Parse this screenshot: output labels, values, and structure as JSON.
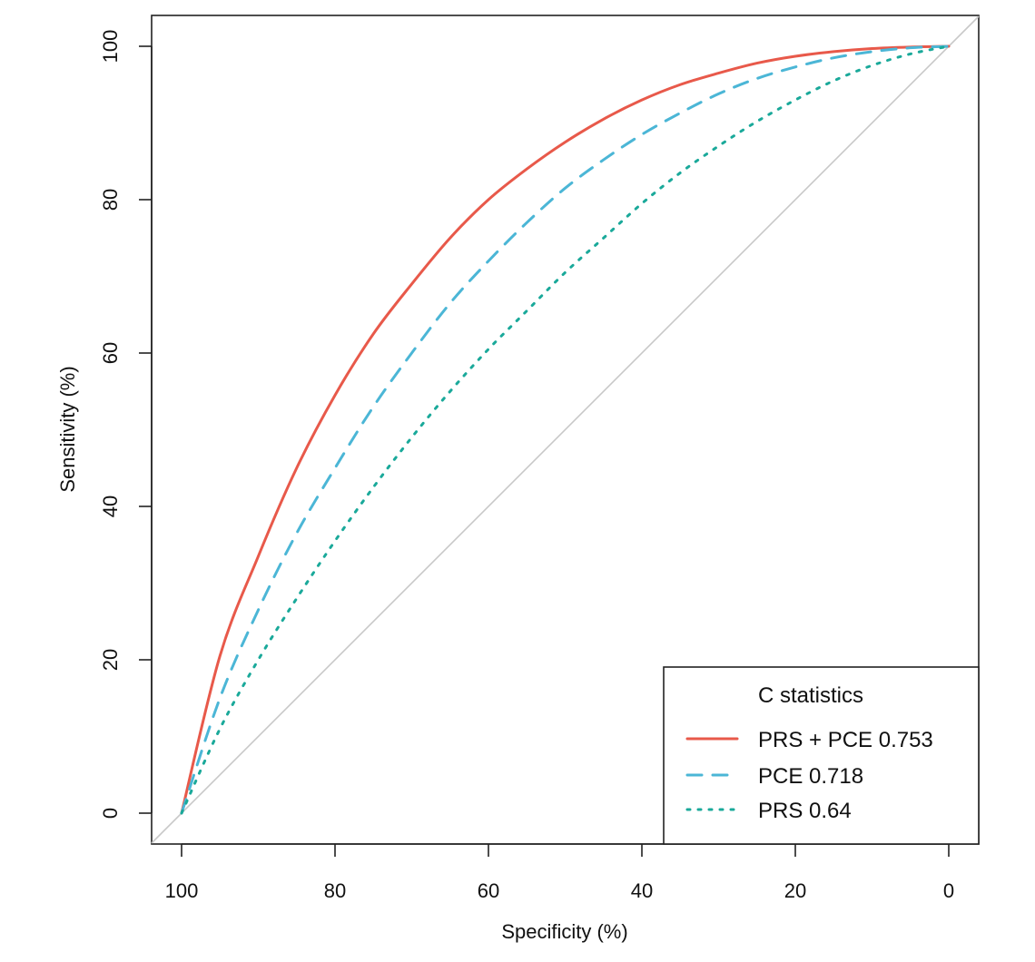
{
  "chart_data": {
    "type": "line",
    "xlabel": "Specificity (%)",
    "ylabel": "Sensitivity (%)",
    "xlim": [
      100,
      0
    ],
    "ylim": [
      0,
      100
    ],
    "x_reversed": true,
    "xticks": [
      100,
      80,
      60,
      40,
      20,
      0
    ],
    "yticks": [
      0,
      20,
      40,
      60,
      80,
      100
    ],
    "grid": false,
    "legend": {
      "title": "C statistics",
      "placement": "bottom-right"
    },
    "reference_line": {
      "from": [
        100,
        0
      ],
      "to": [
        0,
        100
      ],
      "color": "#c8c8c8"
    },
    "series": [
      {
        "name": "PRS + PCE 0.753",
        "color": "#e8594a",
        "dash": "solid",
        "x": [
          100,
          95,
          90,
          85,
          80,
          75,
          70,
          65,
          60,
          55,
          50,
          45,
          40,
          35,
          30,
          25,
          20,
          15,
          10,
          5,
          0
        ],
        "y": [
          0,
          20.5,
          33.5,
          45,
          54.5,
          62.5,
          69,
          75,
          80,
          84,
          87.5,
          90.5,
          93,
          95,
          96.5,
          97.8,
          98.7,
          99.3,
          99.7,
          99.9,
          100
        ]
      },
      {
        "name": "PCE 0.718",
        "color": "#4bb6d6",
        "dash": "dashed",
        "x": [
          100,
          95,
          90,
          85,
          80,
          75,
          70,
          65,
          60,
          55,
          50,
          45,
          40,
          35,
          30,
          25,
          20,
          15,
          10,
          5,
          0
        ],
        "y": [
          0,
          15,
          26.5,
          36.5,
          45,
          53,
          60,
          66.5,
          72,
          77,
          81.5,
          85.2,
          88.5,
          91.3,
          93.8,
          95.8,
          97.3,
          98.5,
          99.3,
          99.8,
          100
        ]
      },
      {
        "name": "PRS 0.64",
        "color": "#1aa99a",
        "dash": "dotted",
        "x": [
          100,
          95,
          90,
          85,
          80,
          75,
          70,
          65,
          60,
          55,
          50,
          45,
          40,
          35,
          30,
          25,
          20,
          15,
          10,
          5,
          0
        ],
        "y": [
          0,
          11,
          20,
          28,
          35.5,
          42.5,
          49,
          55,
          60.5,
          65.5,
          70.5,
          75,
          79.5,
          83.5,
          87,
          90.2,
          93,
          95.5,
          97.5,
          99,
          100
        ]
      }
    ]
  }
}
